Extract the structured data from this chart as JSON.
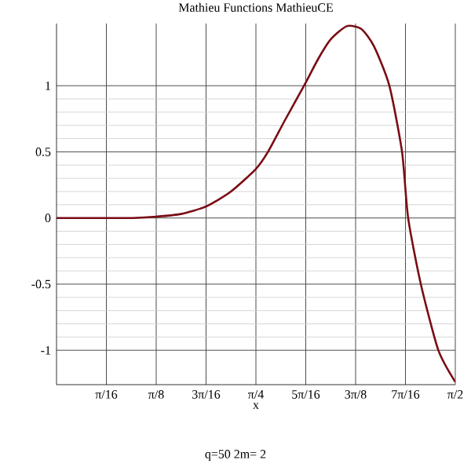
{
  "chart_data": {
    "type": "line",
    "title": "Mathieu Functions   MathieuCE",
    "xlabel": "x",
    "annotations": [
      "q=50  2m=  2"
    ],
    "x": [
      0,
      0.2,
      0.3,
      0.393,
      0.49,
      0.589,
      0.687,
      0.785,
      0.833,
      0.9,
      0.975,
      1.03,
      1.08,
      1.143,
      1.2,
      1.25,
      1.311,
      1.361,
      1.385,
      1.435,
      1.504,
      1.5708
    ],
    "series": [
      {
        "color": "#7a0c14",
        "values": [
          0,
          0,
          0,
          0.01,
          0.03,
          0.087,
          0.2,
          0.37,
          0.5,
          0.74,
          1.0,
          1.2,
          1.35,
          1.45,
          1.43,
          1.3,
          1.0,
          0.5,
          0.0,
          -0.5,
          -1.0,
          -1.24
        ]
      }
    ],
    "xlim": [
      0,
      1.5708
    ],
    "ylim": [
      -1.26,
      1.47
    ],
    "xticks": [
      {
        "value": 0.19635,
        "label": "π/16"
      },
      {
        "value": 0.3927,
        "label": "π/8"
      },
      {
        "value": 0.58905,
        "label": "3π/16"
      },
      {
        "value": 0.7854,
        "label": "π/4"
      },
      {
        "value": 0.98175,
        "label": "5π/16"
      },
      {
        "value": 1.1781,
        "label": "3π/8"
      },
      {
        "value": 1.37445,
        "label": "7π/16"
      },
      {
        "value": 1.5708,
        "label": "π/2"
      }
    ],
    "yticks": [
      -1,
      -0.5,
      0,
      0.5,
      1
    ],
    "grid": true,
    "line_style": "solid",
    "marker": "none"
  }
}
